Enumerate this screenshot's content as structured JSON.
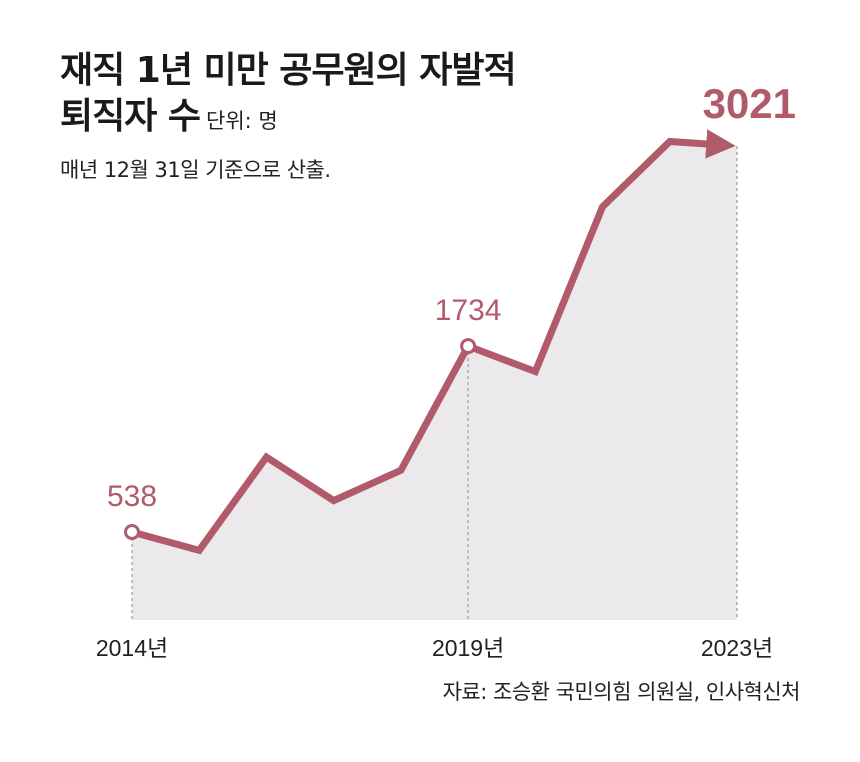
{
  "header": {
    "title_line1": "재직 1년 미만 공무원의 자발적",
    "title_line2": "퇴직자 수",
    "unit": "단위: 명",
    "subtitle": "매년 12월 31일 기준으로 산출."
  },
  "source": "자료: 조승환 국민의힘 의원실, 인사혁신처",
  "colors": {
    "line": "#b05a6a",
    "area": "#ebe9ec",
    "label": "#b05a6a",
    "guide": "#9a9a9a"
  },
  "chart_data": {
    "type": "area",
    "x": [
      2014,
      2015,
      2016,
      2017,
      2018,
      2019,
      2020,
      2021,
      2022,
      2023
    ],
    "values": [
      538,
      420,
      1020,
      740,
      935,
      1734,
      1570,
      2630,
      3050,
      3021
    ],
    "tick_labels": [
      {
        "year": 2014,
        "label": "2014년"
      },
      {
        "year": 2019,
        "label": "2019년"
      },
      {
        "year": 2023,
        "label": "2023년"
      }
    ],
    "point_labels": [
      {
        "year": 2014,
        "label": "538"
      },
      {
        "year": 2019,
        "label": "1734"
      },
      {
        "year": 2023,
        "label": "3021"
      }
    ],
    "ylim": [
      -1000,
      3300
    ],
    "grid": false,
    "legend": "none"
  }
}
